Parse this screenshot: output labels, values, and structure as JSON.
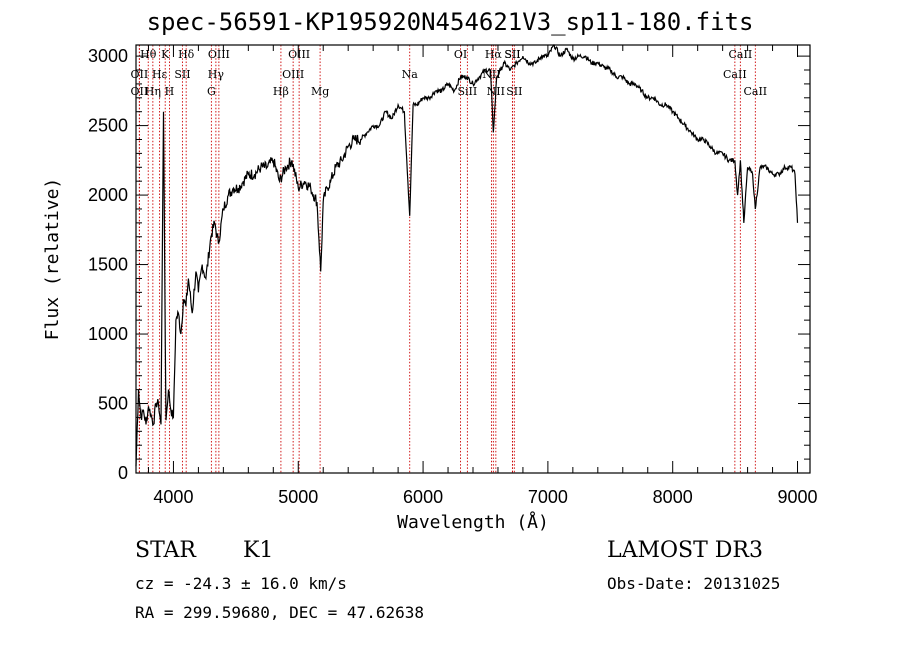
{
  "chart_data": {
    "type": "line",
    "title": "spec-56591-KP195920N454621V3_sp11-180.fits",
    "xlabel": "Wavelength (Å)",
    "ylabel": "Flux (relative)",
    "xlim": [
      3700,
      9100
    ],
    "ylim": [
      0,
      3080
    ],
    "xticks": [
      4000,
      5000,
      6000,
      7000,
      8000,
      9000
    ],
    "yticks": [
      0,
      500,
      1000,
      1500,
      2000,
      2500,
      3000
    ],
    "grid": false,
    "series": [
      {
        "name": "flux",
        "x": [
          3700,
          3720,
          3740,
          3760,
          3780,
          3800,
          3820,
          3840,
          3860,
          3880,
          3900,
          3920,
          3940,
          3960,
          3980,
          4000,
          4020,
          4040,
          4060,
          4080,
          4100,
          4120,
          4150,
          4180,
          4200,
          4230,
          4260,
          4300,
          4330,
          4360,
          4400,
          4440,
          4480,
          4520,
          4560,
          4600,
          4650,
          4700,
          4750,
          4800,
          4850,
          4900,
          4950,
          5000,
          5050,
          5100,
          5150,
          5180,
          5200,
          5230,
          5260,
          5300,
          5350,
          5400,
          5450,
          5500,
          5550,
          5600,
          5650,
          5700,
          5750,
          5800,
          5850,
          5893,
          5920,
          5950,
          6000,
          6050,
          6100,
          6150,
          6200,
          6250,
          6300,
          6350,
          6400,
          6450,
          6500,
          6540,
          6563,
          6590,
          6620,
          6650,
          6700,
          6750,
          6800,
          6850,
          6900,
          6950,
          7000,
          7050,
          7100,
          7150,
          7200,
          7250,
          7300,
          7350,
          7400,
          7450,
          7500,
          7550,
          7600,
          7650,
          7700,
          7750,
          7800,
          7850,
          7900,
          7950,
          8000,
          8050,
          8100,
          8150,
          8200,
          8250,
          8300,
          8350,
          8400,
          8450,
          8498,
          8520,
          8542,
          8570,
          8600,
          8640,
          8662,
          8700,
          8750,
          8800,
          8850,
          8900,
          8950,
          8980,
          9000
        ],
        "values": [
          50,
          600,
          400,
          450,
          350,
          480,
          420,
          350,
          500,
          500,
          350,
          2600,
          380,
          600,
          450,
          400,
          1100,
          1150,
          1000,
          1250,
          1200,
          1400,
          1150,
          1450,
          1300,
          1500,
          1400,
          1700,
          1800,
          1650,
          1900,
          2000,
          2050,
          2050,
          2100,
          2150,
          2150,
          2200,
          2200,
          2250,
          2100,
          2200,
          2250,
          2050,
          2100,
          2050,
          1950,
          1450,
          1950,
          2050,
          2100,
          2200,
          2250,
          2350,
          2400,
          2400,
          2450,
          2500,
          2500,
          2600,
          2550,
          2650,
          2600,
          1850,
          2650,
          2650,
          2700,
          2700,
          2750,
          2750,
          2800,
          2750,
          2850,
          2850,
          2800,
          2850,
          2900,
          2900,
          2450,
          2850,
          2900,
          2950,
          2900,
          2950,
          3000,
          2950,
          2950,
          3000,
          3000,
          3080,
          3000,
          3050,
          2980,
          3000,
          3000,
          2950,
          2950,
          2920,
          2900,
          2850,
          2850,
          2800,
          2800,
          2750,
          2700,
          2700,
          2650,
          2650,
          2600,
          2550,
          2500,
          2450,
          2400,
          2400,
          2350,
          2300,
          2300,
          2250,
          2250,
          2000,
          2250,
          1800,
          2200,
          2150,
          1900,
          2200,
          2200,
          2150,
          2150,
          2200,
          2200,
          2150,
          1800
        ]
      }
    ],
    "lines": [
      {
        "name": "Hθ",
        "wavelength": 3798
      },
      {
        "name": "OII",
        "wavelength": 3727
      },
      {
        "name": "OII",
        "wavelength": 3727
      },
      {
        "name": "Hη",
        "wavelength": 3835
      },
      {
        "name": "K",
        "wavelength": 3934
      },
      {
        "name": "H",
        "wavelength": 3968
      },
      {
        "name": "Hε",
        "wavelength": 3889
      },
      {
        "name": "SII",
        "wavelength": 4072
      },
      {
        "name": "Hδ",
        "wavelength": 4102
      },
      {
        "name": "OIII",
        "wavelength": 4364
      },
      {
        "name": "Hγ",
        "wavelength": 4340
      },
      {
        "name": "G",
        "wavelength": 4304
      },
      {
        "name": "OIII",
        "wavelength": 5007
      },
      {
        "name": "OIII",
        "wavelength": 4959
      },
      {
        "name": "Hβ",
        "wavelength": 4861
      },
      {
        "name": "Mg",
        "wavelength": 5175
      },
      {
        "name": "Na",
        "wavelength": 5893
      },
      {
        "name": "OI",
        "wavelength": 6300
      },
      {
        "name": "SiII",
        "wavelength": 6355
      },
      {
        "name": "Hα",
        "wavelength": 6563
      },
      {
        "name": "SII",
        "wavelength": 6716
      },
      {
        "name": "NII",
        "wavelength": 6548
      },
      {
        "name": "NII",
        "wavelength": 6583
      },
      {
        "name": "SII",
        "wavelength": 6731
      },
      {
        "name": "SII",
        "wavelength": 6716
      },
      {
        "name": "CaII",
        "wavelength": 8542
      },
      {
        "name": "CaII",
        "wavelength": 8498
      },
      {
        "name": "CaII",
        "wavelength": 8662
      }
    ]
  },
  "info": {
    "object_class": "STAR",
    "subclass": "K1",
    "survey": "LAMOST DR3",
    "redshift": "cz = -24.3 ± 16.0 km/s",
    "obs_date": "Obs-Date: 20131025",
    "coords": "RA = 299.59680, DEC =  47.62638"
  },
  "colors": {
    "axis": "#000000",
    "spectrum": "#000000",
    "line_marker": "#cc0000"
  }
}
